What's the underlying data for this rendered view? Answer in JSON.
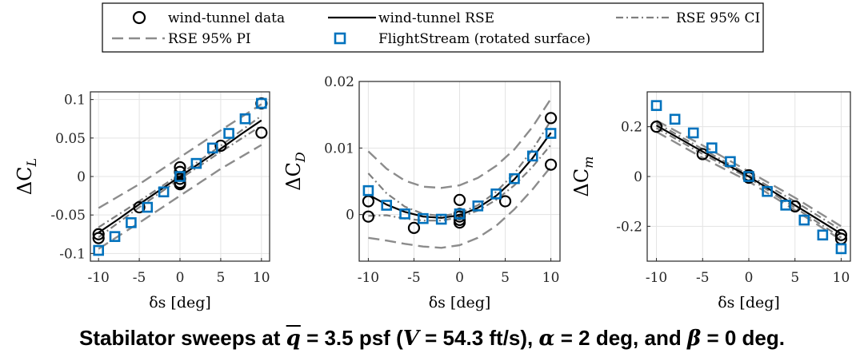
{
  "legend": {
    "items": [
      {
        "key": "wt_data",
        "label": "wind-tunnel data"
      },
      {
        "key": "wt_rse",
        "label": "wind-tunnel RSE"
      },
      {
        "key": "rse_ci",
        "label": "RSE 95% CI"
      },
      {
        "key": "rse_pi",
        "label": "RSE 95% PI"
      },
      {
        "key": "fs",
        "label": "FlightStream (rotated surface)"
      }
    ]
  },
  "colors": {
    "wt_data": "#000000",
    "wt_rse": "#000000",
    "rse_ci": "#7f7f7f",
    "rse_pi": "#8c8c8c",
    "fs": "#0072bd"
  },
  "caption": {
    "prefix": "Stabilator sweeps at ",
    "qbar": "q",
    "part2": " = 3.5 psf (",
    "V": "V",
    "part3": " = 54.3 ft/s), ",
    "alpha": "α",
    "part4": " = 2 deg, and ",
    "beta": "β",
    "part5": " = 0 deg."
  },
  "chart_data": [
    {
      "type": "scatter",
      "ylabel_main": "ΔC",
      "ylabel_sub": "L",
      "xlabel": "δs [deg]",
      "xlim": [
        -11,
        11
      ],
      "ylim": [
        -0.11,
        0.11
      ],
      "xticks": [
        -10,
        -5,
        0,
        5,
        10
      ],
      "xtick_labels": [
        "-10",
        "-5",
        "0",
        "5",
        "10"
      ],
      "yticks": [
        -0.1,
        -0.05,
        0,
        0.05,
        0.1
      ],
      "ytick_labels": [
        "-0.1",
        "-0.05",
        "0",
        "0.05",
        "0.1"
      ],
      "grid": true,
      "wt_data": {
        "x": [
          -10,
          -10,
          -5,
          0,
          0,
          0,
          0,
          0,
          5,
          10,
          10
        ],
        "y": [
          -0.08,
          -0.075,
          -0.04,
          0.012,
          0.006,
          -0.003,
          -0.008,
          -0.01,
          0.04,
          0.057,
          0.095
        ]
      },
      "wt_rse": {
        "x": [
          -10,
          -7.5,
          -5,
          -2.5,
          0,
          2.5,
          5,
          7.5,
          10
        ],
        "y": [
          -0.073,
          -0.055,
          -0.036,
          -0.018,
          0.0,
          0.018,
          0.036,
          0.055,
          0.073
        ]
      },
      "rse_ci_upper": {
        "x": [
          -10,
          -5,
          0,
          5,
          10
        ],
        "y": [
          -0.066,
          -0.032,
          0.003,
          0.04,
          0.079
        ]
      },
      "rse_ci_lower": {
        "x": [
          -10,
          -5,
          0,
          5,
          10
        ],
        "y": [
          -0.079,
          -0.04,
          -0.003,
          0.032,
          0.066
        ]
      },
      "rse_pi_upper": {
        "x": [
          -10,
          -5,
          0,
          5,
          10
        ],
        "y": [
          -0.041,
          -0.01,
          0.025,
          0.06,
          0.094
        ]
      },
      "rse_pi_lower": {
        "x": [
          -10,
          -5,
          0,
          5,
          10
        ],
        "y": [
          -0.094,
          -0.06,
          -0.025,
          0.01,
          0.041
        ]
      },
      "fs": {
        "x": [
          -10,
          -8,
          -6,
          -4,
          -2,
          0,
          2,
          4,
          6,
          8,
          10
        ],
        "y": [
          -0.096,
          -0.078,
          -0.06,
          -0.04,
          -0.02,
          0.0,
          0.017,
          0.037,
          0.056,
          0.075,
          0.095
        ]
      }
    },
    {
      "type": "scatter",
      "ylabel_main": "ΔC",
      "ylabel_sub": "D",
      "xlabel": "δs [deg]",
      "xlim": [
        -11,
        11
      ],
      "ylim": [
        -0.007,
        0.02
      ],
      "xticks": [
        -10,
        -5,
        0,
        5,
        10
      ],
      "xtick_labels": [
        "-10",
        "-5",
        "0",
        "5",
        "10"
      ],
      "yticks": [
        0,
        0.01,
        0.02
      ],
      "ytick_labels": [
        "0",
        "0.01",
        "0.02"
      ],
      "grid": true,
      "wt_data": {
        "x": [
          -10,
          -10,
          -5,
          0,
          0,
          0,
          0,
          0,
          5,
          10,
          10
        ],
        "y": [
          0.002,
          -0.0003,
          -0.002,
          0.0022,
          0.0001,
          -0.0003,
          -0.0008,
          -0.0012,
          0.002,
          0.0075,
          0.0145
        ]
      },
      "wt_rse": {
        "x": [
          -10,
          -8,
          -6,
          -4,
          -2,
          0,
          2,
          4,
          6,
          8,
          10
        ],
        "y": [
          0.003,
          0.0015,
          0.0004,
          -0.0003,
          -0.0005,
          -0.0001,
          0.001,
          0.0028,
          0.0053,
          0.0085,
          0.0123
        ]
      },
      "rse_ci_upper": {
        "x": [
          -10,
          -8,
          -6,
          -4,
          -2,
          0,
          2,
          4,
          6,
          8,
          10
        ],
        "y": [
          0.0062,
          0.0032,
          0.0012,
          0.0001,
          -0.0002,
          0.0002,
          0.0014,
          0.0034,
          0.0062,
          0.0098,
          0.0141
        ]
      },
      "rse_ci_lower": {
        "x": [
          -10,
          -8,
          -6,
          -4,
          -2,
          0,
          2,
          4,
          6,
          8,
          10
        ],
        "y": [
          -0.0002,
          -0.0001,
          -0.0006,
          -0.0009,
          -0.0009,
          -0.0004,
          0.0006,
          0.0022,
          0.0044,
          0.0072,
          0.0105
        ]
      },
      "rse_pi_upper": {
        "x": [
          -10,
          -8,
          -6,
          -4,
          -2,
          0,
          2,
          4,
          6,
          8,
          10
        ],
        "y": [
          0.0095,
          0.0069,
          0.0051,
          0.0042,
          0.004,
          0.0044,
          0.0055,
          0.0073,
          0.0098,
          0.0132,
          0.0174
        ]
      },
      "rse_pi_lower": {
        "x": [
          -10,
          -8,
          -6,
          -4,
          -2,
          0,
          2,
          4,
          6,
          8,
          10
        ],
        "y": [
          -0.0035,
          -0.0039,
          -0.0044,
          -0.0048,
          -0.005,
          -0.0046,
          -0.0035,
          -0.0017,
          0.0008,
          0.0038,
          0.0072
        ]
      },
      "fs": {
        "x": [
          -10,
          -8,
          -6,
          -4,
          -2,
          0,
          2,
          4,
          6,
          8,
          10
        ],
        "y": [
          0.0036,
          0.0014,
          0.0001,
          -0.0006,
          -0.0007,
          0.0001,
          0.0013,
          0.0031,
          0.0054,
          0.0088,
          0.0122
        ]
      }
    },
    {
      "type": "scatter",
      "ylabel_main": "ΔC",
      "ylabel_sub": "m",
      "xlabel": "δs [deg]",
      "xlim": [
        -11,
        11
      ],
      "ylim": [
        -0.34,
        0.34
      ],
      "xticks": [
        -10,
        -5,
        0,
        5,
        10
      ],
      "xtick_labels": [
        "-10",
        "-5",
        "0",
        "5",
        "10"
      ],
      "yticks": [
        -0.2,
        0,
        0.2
      ],
      "ytick_labels": [
        "-0.2",
        "0",
        "0.2"
      ],
      "grid": true,
      "wt_data": {
        "x": [
          -10,
          -5,
          0,
          0,
          5,
          10,
          10
        ],
        "y": [
          0.2,
          0.09,
          0.005,
          -0.005,
          -0.12,
          -0.235,
          -0.25
        ]
      },
      "wt_rse": {
        "x": [
          -10,
          -5,
          0,
          5,
          10
        ],
        "y": [
          0.205,
          0.1,
          0.0,
          -0.115,
          -0.23
        ]
      },
      "rse_ci_upper": {
        "x": [
          -10,
          -5,
          0,
          5,
          10
        ],
        "y": [
          0.215,
          0.11,
          0.006,
          -0.1,
          -0.215
        ]
      },
      "rse_ci_lower": {
        "x": [
          -10,
          -5,
          0,
          5,
          10
        ],
        "y": [
          0.195,
          0.09,
          -0.006,
          -0.125,
          -0.245
        ]
      },
      "rse_pi_upper": {
        "x": [
          -10,
          -5,
          0,
          5,
          10
        ],
        "y": [
          0.225,
          0.125,
          0.02,
          -0.085,
          -0.2
        ]
      },
      "rse_pi_lower": {
        "x": [
          -10,
          -5,
          0,
          5,
          10
        ],
        "y": [
          0.18,
          0.075,
          -0.02,
          -0.135,
          -0.255
        ]
      },
      "fs": {
        "x": [
          -10,
          -8,
          -6,
          -4,
          -2,
          0,
          2,
          4,
          6,
          8,
          10
        ],
        "y": [
          0.285,
          0.23,
          0.175,
          0.115,
          0.06,
          0.0,
          -0.06,
          -0.115,
          -0.175,
          -0.235,
          -0.29
        ]
      }
    }
  ]
}
